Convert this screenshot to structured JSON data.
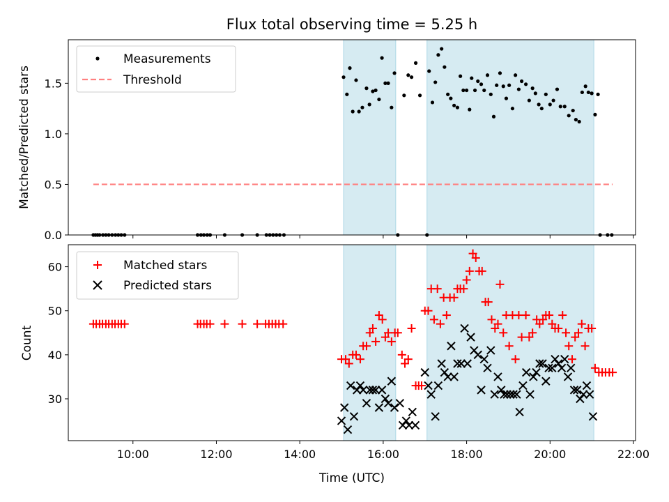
{
  "figure": {
    "title": "Flux total observing time = 5.25 h",
    "xlabel": "Time (UTC)",
    "xticks": [
      {
        "v": 10,
        "label": "10:00"
      },
      {
        "v": 12,
        "label": "12:00"
      },
      {
        "v": 14,
        "label": "14:00"
      },
      {
        "v": 16,
        "label": "16:00"
      },
      {
        "v": 18,
        "label": "18:00"
      },
      {
        "v": 20,
        "label": "20:00"
      },
      {
        "v": 22,
        "label": "22:00"
      }
    ],
    "xlim": [
      8.45,
      22.05
    ],
    "shaded_intervals": [
      [
        15.05,
        16.3
      ],
      [
        17.05,
        21.05
      ]
    ],
    "colors": {
      "shade": "#add8e6",
      "threshold": "#ff8080",
      "matched": "#ff0000",
      "predicted": "#000000",
      "measurement": "#000000"
    }
  },
  "chart_data": [
    {
      "type": "scatter",
      "ylabel": "Matched/Predicted stars",
      "ylim": [
        0,
        1.93
      ],
      "yticks": [
        {
          "v": 0,
          "label": "0.0"
        },
        {
          "v": 0.5,
          "label": "0.5"
        },
        {
          "v": 1,
          "label": "1.0"
        },
        {
          "v": 1.5,
          "label": "1.5"
        }
      ],
      "legend": {
        "position": "upper-left",
        "measurements_label": "Measurements",
        "threshold_label": "Threshold"
      },
      "threshold": {
        "value": 0.5,
        "x": [
          9.05,
          21.5
        ]
      },
      "measurements": [
        [
          9.05,
          0
        ],
        [
          9.1,
          0
        ],
        [
          9.15,
          0
        ],
        [
          9.2,
          0
        ],
        [
          9.28,
          0
        ],
        [
          9.35,
          0
        ],
        [
          9.42,
          0
        ],
        [
          9.5,
          0
        ],
        [
          9.58,
          0
        ],
        [
          9.65,
          0
        ],
        [
          9.72,
          0
        ],
        [
          9.8,
          0
        ],
        [
          11.55,
          0
        ],
        [
          11.63,
          0
        ],
        [
          11.7,
          0
        ],
        [
          11.78,
          0
        ],
        [
          11.85,
          0
        ],
        [
          12.2,
          0
        ],
        [
          12.62,
          0
        ],
        [
          12.98,
          0
        ],
        [
          13.2,
          0
        ],
        [
          13.28,
          0
        ],
        [
          13.36,
          0
        ],
        [
          13.44,
          0
        ],
        [
          13.52,
          0
        ],
        [
          13.62,
          0
        ],
        [
          15.05,
          1.56
        ],
        [
          15.13,
          1.39
        ],
        [
          15.2,
          1.65
        ],
        [
          15.27,
          1.22
        ],
        [
          15.35,
          1.53
        ],
        [
          15.42,
          1.22
        ],
        [
          15.5,
          1.26
        ],
        [
          15.6,
          1.45
        ],
        [
          15.67,
          1.29
        ],
        [
          15.75,
          1.42
        ],
        [
          15.82,
          1.43
        ],
        [
          15.9,
          1.34
        ],
        [
          15.97,
          1.75
        ],
        [
          16.05,
          1.5
        ],
        [
          16.12,
          1.5
        ],
        [
          16.2,
          1.26
        ],
        [
          16.27,
          1.6
        ],
        [
          16.35,
          0
        ],
        [
          16.5,
          1.38
        ],
        [
          16.6,
          1.58
        ],
        [
          16.68,
          1.56
        ],
        [
          16.78,
          1.7
        ],
        [
          16.88,
          1.38
        ],
        [
          17.05,
          0
        ],
        [
          17.1,
          1.62
        ],
        [
          17.18,
          1.31
        ],
        [
          17.25,
          1.51
        ],
        [
          17.32,
          1.78
        ],
        [
          17.4,
          1.84
        ],
        [
          17.47,
          1.66
        ],
        [
          17.55,
          1.39
        ],
        [
          17.62,
          1.35
        ],
        [
          17.7,
          1.28
        ],
        [
          17.78,
          1.26
        ],
        [
          17.85,
          1.57
        ],
        [
          17.92,
          1.43
        ],
        [
          18.0,
          1.43
        ],
        [
          18.07,
          1.24
        ],
        [
          18.12,
          1.55
        ],
        [
          18.2,
          1.43
        ],
        [
          18.27,
          1.52
        ],
        [
          18.35,
          1.49
        ],
        [
          18.42,
          1.43
        ],
        [
          18.5,
          1.58
        ],
        [
          18.58,
          1.39
        ],
        [
          18.65,
          1.17
        ],
        [
          18.72,
          1.48
        ],
        [
          18.8,
          1.6
        ],
        [
          18.88,
          1.47
        ],
        [
          18.95,
          1.35
        ],
        [
          19.02,
          1.48
        ],
        [
          19.1,
          1.25
        ],
        [
          19.17,
          1.58
        ],
        [
          19.25,
          1.44
        ],
        [
          19.32,
          1.52
        ],
        [
          19.42,
          1.49
        ],
        [
          19.5,
          1.33
        ],
        [
          19.58,
          1.45
        ],
        [
          19.65,
          1.4
        ],
        [
          19.73,
          1.29
        ],
        [
          19.8,
          1.25
        ],
        [
          19.9,
          1.39
        ],
        [
          20.0,
          1.29
        ],
        [
          20.08,
          1.33
        ],
        [
          20.17,
          1.44
        ],
        [
          20.25,
          1.27
        ],
        [
          20.35,
          1.27
        ],
        [
          20.45,
          1.18
        ],
        [
          20.55,
          1.23
        ],
        [
          20.62,
          1.14
        ],
        [
          20.7,
          1.12
        ],
        [
          20.77,
          1.41
        ],
        [
          20.85,
          1.47
        ],
        [
          20.92,
          1.41
        ],
        [
          21.0,
          1.4
        ],
        [
          21.08,
          1.19
        ],
        [
          21.15,
          1.39
        ],
        [
          21.2,
          0
        ],
        [
          21.38,
          0
        ],
        [
          21.48,
          0
        ]
      ]
    },
    {
      "type": "scatter",
      "ylabel": "Count",
      "ylim": [
        20.5,
        65
      ],
      "yticks": [
        {
          "v": 30,
          "label": "30"
        },
        {
          "v": 40,
          "label": "40"
        },
        {
          "v": 50,
          "label": "50"
        },
        {
          "v": 60,
          "label": "60"
        }
      ],
      "legend": {
        "position": "upper-left",
        "matched_label": "Matched stars",
        "predicted_label": "Predicted stars"
      },
      "matched": [
        [
          9.05,
          47
        ],
        [
          9.12,
          47
        ],
        [
          9.2,
          47
        ],
        [
          9.27,
          47
        ],
        [
          9.35,
          47
        ],
        [
          9.42,
          47
        ],
        [
          9.5,
          47
        ],
        [
          9.57,
          47
        ],
        [
          9.65,
          47
        ],
        [
          9.72,
          47
        ],
        [
          9.8,
          47
        ],
        [
          11.55,
          47
        ],
        [
          11.62,
          47
        ],
        [
          11.7,
          47
        ],
        [
          11.77,
          47
        ],
        [
          11.85,
          47
        ],
        [
          12.2,
          47
        ],
        [
          12.62,
          47
        ],
        [
          12.98,
          47
        ],
        [
          13.18,
          47
        ],
        [
          13.26,
          47
        ],
        [
          13.34,
          47
        ],
        [
          13.42,
          47
        ],
        [
          13.5,
          47
        ],
        [
          13.6,
          47
        ],
        [
          15.0,
          39
        ],
        [
          15.1,
          39
        ],
        [
          15.18,
          38
        ],
        [
          15.27,
          40
        ],
        [
          15.35,
          40
        ],
        [
          15.45,
          39
        ],
        [
          15.52,
          42
        ],
        [
          15.6,
          42
        ],
        [
          15.68,
          45
        ],
        [
          15.75,
          46
        ],
        [
          15.82,
          43
        ],
        [
          15.9,
          49
        ],
        [
          15.98,
          48
        ],
        [
          16.05,
          44
        ],
        [
          16.12,
          45
        ],
        [
          16.2,
          43
        ],
        [
          16.28,
          45
        ],
        [
          16.35,
          45
        ],
        [
          16.45,
          40
        ],
        [
          16.52,
          38
        ],
        [
          16.6,
          39
        ],
        [
          16.68,
          46
        ],
        [
          16.78,
          33
        ],
        [
          16.85,
          33
        ],
        [
          16.92,
          33
        ],
        [
          17.0,
          50
        ],
        [
          17.08,
          50
        ],
        [
          17.15,
          55
        ],
        [
          17.22,
          48
        ],
        [
          17.3,
          55
        ],
        [
          17.37,
          47
        ],
        [
          17.45,
          53
        ],
        [
          17.52,
          49
        ],
        [
          17.6,
          53
        ],
        [
          17.7,
          53
        ],
        [
          17.78,
          55
        ],
        [
          17.85,
          55
        ],
        [
          17.93,
          55
        ],
        [
          18.0,
          57
        ],
        [
          18.07,
          59
        ],
        [
          18.15,
          63
        ],
        [
          18.22,
          62
        ],
        [
          18.3,
          59
        ],
        [
          18.37,
          59
        ],
        [
          18.45,
          52
        ],
        [
          18.52,
          52
        ],
        [
          18.6,
          48
        ],
        [
          18.68,
          46
        ],
        [
          18.75,
          47
        ],
        [
          18.8,
          56
        ],
        [
          18.88,
          45
        ],
        [
          18.95,
          49
        ],
        [
          19.02,
          42
        ],
        [
          19.1,
          49
        ],
        [
          19.17,
          39
        ],
        [
          19.25,
          49
        ],
        [
          19.32,
          44
        ],
        [
          19.42,
          49
        ],
        [
          19.5,
          44
        ],
        [
          19.58,
          45
        ],
        [
          19.68,
          48
        ],
        [
          19.75,
          47
        ],
        [
          19.83,
          48
        ],
        [
          19.9,
          49
        ],
        [
          19.98,
          49
        ],
        [
          20.05,
          47
        ],
        [
          20.12,
          46
        ],
        [
          20.2,
          46
        ],
        [
          20.3,
          49
        ],
        [
          20.38,
          45
        ],
        [
          20.45,
          42
        ],
        [
          20.53,
          39
        ],
        [
          20.6,
          44
        ],
        [
          20.68,
          45
        ],
        [
          20.76,
          47
        ],
        [
          20.84,
          42
        ],
        [
          20.92,
          46
        ],
        [
          21.0,
          46
        ],
        [
          21.08,
          37
        ],
        [
          21.17,
          36
        ],
        [
          21.25,
          36
        ],
        [
          21.33,
          36
        ],
        [
          21.42,
          36
        ],
        [
          21.5,
          36
        ]
      ],
      "predicted": [
        [
          15.0,
          25
        ],
        [
          15.07,
          28
        ],
        [
          15.15,
          23
        ],
        [
          15.22,
          33
        ],
        [
          15.3,
          26
        ],
        [
          15.37,
          32
        ],
        [
          15.45,
          33
        ],
        [
          15.52,
          32
        ],
        [
          15.6,
          29
        ],
        [
          15.68,
          32
        ],
        [
          15.75,
          32
        ],
        [
          15.82,
          32
        ],
        [
          15.9,
          28
        ],
        [
          15.97,
          32
        ],
        [
          16.05,
          30
        ],
        [
          16.12,
          29
        ],
        [
          16.2,
          34
        ],
        [
          16.27,
          28
        ],
        [
          16.4,
          29
        ],
        [
          16.47,
          24
        ],
        [
          16.55,
          25
        ],
        [
          16.62,
          24
        ],
        [
          16.7,
          27
        ],
        [
          16.77,
          24
        ],
        [
          17.0,
          36
        ],
        [
          17.08,
          33
        ],
        [
          17.15,
          31
        ],
        [
          17.25,
          26
        ],
        [
          17.32,
          33
        ],
        [
          17.4,
          38
        ],
        [
          17.47,
          36
        ],
        [
          17.55,
          35
        ],
        [
          17.63,
          42
        ],
        [
          17.7,
          35
        ],
        [
          17.78,
          38
        ],
        [
          17.87,
          38
        ],
        [
          17.95,
          46
        ],
        [
          18.02,
          38
        ],
        [
          18.1,
          44
        ],
        [
          18.18,
          41
        ],
        [
          18.27,
          40
        ],
        [
          18.35,
          32
        ],
        [
          18.42,
          39
        ],
        [
          18.5,
          37
        ],
        [
          18.58,
          41
        ],
        [
          18.67,
          31
        ],
        [
          18.75,
          35
        ],
        [
          18.83,
          32
        ],
        [
          18.9,
          31
        ],
        [
          18.97,
          31
        ],
        [
          19.05,
          31
        ],
        [
          19.12,
          31
        ],
        [
          19.2,
          31
        ],
        [
          19.27,
          27
        ],
        [
          19.35,
          33
        ],
        [
          19.43,
          36
        ],
        [
          19.52,
          31
        ],
        [
          19.6,
          35
        ],
        [
          19.67,
          36
        ],
        [
          19.75,
          38
        ],
        [
          19.82,
          38
        ],
        [
          19.9,
          34
        ],
        [
          19.97,
          37
        ],
        [
          20.05,
          37
        ],
        [
          20.12,
          39
        ],
        [
          20.2,
          38
        ],
        [
          20.28,
          37
        ],
        [
          20.35,
          39
        ],
        [
          20.43,
          35
        ],
        [
          20.5,
          37
        ],
        [
          20.58,
          32
        ],
        [
          20.65,
          32
        ],
        [
          20.72,
          30
        ],
        [
          20.8,
          31
        ],
        [
          20.88,
          33
        ],
        [
          20.95,
          31
        ],
        [
          21.03,
          26
        ]
      ]
    }
  ]
}
